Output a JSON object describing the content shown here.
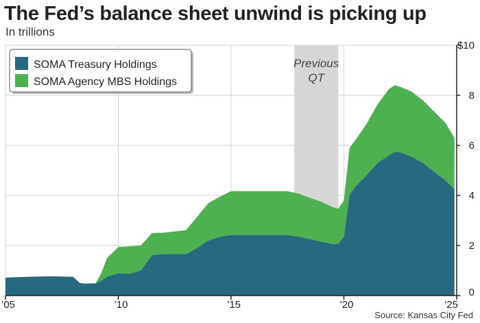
{
  "title": "The Fed’s balance sheet unwind is picking up",
  "subtitle": "In trillions",
  "source": "Source: Kansas City Fed",
  "colors": {
    "treasury": "#276a80",
    "mbs": "#4db14f",
    "shade": "#d6d6d6",
    "grid": "#d0d0d0",
    "axis": "#222222"
  },
  "chart_data": {
    "type": "area",
    "stacked": true,
    "xlim": [
      2005,
      2025
    ],
    "ylim": [
      0,
      10
    ],
    "x_ticks": [
      {
        "value": 2005,
        "label": "’05"
      },
      {
        "value": 2010,
        "label": "’10"
      },
      {
        "value": 2015,
        "label": "’15"
      },
      {
        "value": 2020,
        "label": "’20"
      },
      {
        "value": 2025,
        "label": "’25"
      }
    ],
    "y_ticks": [
      {
        "value": 0,
        "label": "0"
      },
      {
        "value": 2,
        "label": "2"
      },
      {
        "value": 4,
        "label": "4"
      },
      {
        "value": 6,
        "label": "6"
      },
      {
        "value": 8,
        "label": "8"
      },
      {
        "value": 10,
        "label": "$10"
      }
    ],
    "grid": true,
    "legend_position": "top-left",
    "annotation": {
      "label_line1": "Previous",
      "label_line2": "QT",
      "x_start": 2017.8,
      "x_end": 2019.75
    },
    "x": [
      2005,
      2006,
      2007,
      2007.5,
      2008,
      2008.3,
      2008.5,
      2009,
      2009.25,
      2009.5,
      2010,
      2010.5,
      2011,
      2011.5,
      2012,
      2013,
      2013.5,
      2014,
      2014.5,
      2015,
      2016,
      2017,
      2017.5,
      2018,
      2018.5,
      2019,
      2019.5,
      2019.75,
      2020,
      2020.25,
      2020.5,
      2021,
      2021.5,
      2022,
      2022.25,
      2022.5,
      2023,
      2023.5,
      2024,
      2024.5,
      2024.9
    ],
    "series": [
      {
        "name": "SOMA Treasury Holdings",
        "values": [
          0.72,
          0.75,
          0.77,
          0.76,
          0.75,
          0.5,
          0.48,
          0.49,
          0.6,
          0.75,
          0.89,
          0.87,
          1.0,
          1.62,
          1.66,
          1.66,
          1.9,
          2.2,
          2.35,
          2.42,
          2.42,
          2.42,
          2.42,
          2.35,
          2.25,
          2.15,
          2.05,
          2.07,
          2.35,
          4.0,
          4.35,
          4.8,
          5.3,
          5.6,
          5.75,
          5.72,
          5.55,
          5.3,
          4.95,
          4.6,
          4.25
        ]
      },
      {
        "name": "SOMA Agency MBS Holdings",
        "values": [
          0,
          0,
          0,
          0,
          0,
          0,
          0,
          0,
          0.3,
          0.75,
          1.05,
          1.1,
          1.0,
          0.88,
          0.85,
          0.95,
          1.25,
          1.5,
          1.6,
          1.75,
          1.75,
          1.75,
          1.75,
          1.72,
          1.65,
          1.6,
          1.48,
          1.4,
          1.45,
          1.9,
          1.85,
          2.05,
          2.35,
          2.65,
          2.65,
          2.62,
          2.6,
          2.5,
          2.4,
          2.3,
          2.05
        ]
      }
    ]
  }
}
